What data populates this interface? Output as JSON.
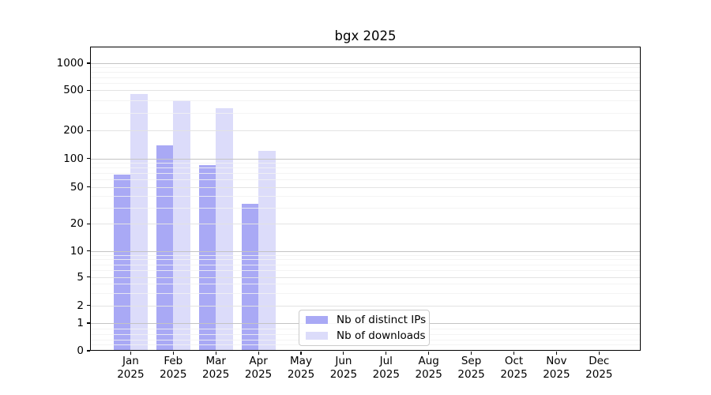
{
  "chart_data": {
    "type": "bar",
    "title": "bgx 2025",
    "categories": [
      "Jan 2025",
      "Feb 2025",
      "Mar 2025",
      "Apr 2025",
      "May 2025",
      "Jun 2025",
      "Jul 2025",
      "Aug 2025",
      "Sep 2025",
      "Oct 2025",
      "Nov 2025",
      "Dec 2025"
    ],
    "series": [
      {
        "name": "Nb of distinct IPs",
        "key": "distinct-ips",
        "color": "#a9a9f5",
        "values": [
          67,
          138,
          85,
          33,
          0,
          0,
          0,
          0,
          0,
          0,
          0,
          0
        ]
      },
      {
        "name": "Nb of downloads",
        "key": "downloads",
        "color": "#dcdcfa",
        "values": [
          460,
          395,
          330,
          120,
          0,
          0,
          0,
          0,
          0,
          0,
          0,
          0
        ]
      }
    ],
    "xlabel": "",
    "ylabel": "",
    "yscale": "log-like (asinh) including 0",
    "yticks": [
      0,
      1,
      2,
      5,
      10,
      20,
      50,
      100,
      200,
      500,
      1000
    ],
    "ylim": [
      0,
      1500
    ],
    "grid": "horizontal major and minor gridlines, drawn above bars",
    "legend_position": "lower center",
    "colors": {
      "bar_distinct_ips": "#a9a9f5",
      "bar_downloads": "#dcdcfa",
      "grid_decade": "#c4c4c4",
      "grid_labeled": "#e3e3e3",
      "grid_minor": "#f2f2f2",
      "axis": "#000000",
      "background": "#ffffff"
    }
  }
}
